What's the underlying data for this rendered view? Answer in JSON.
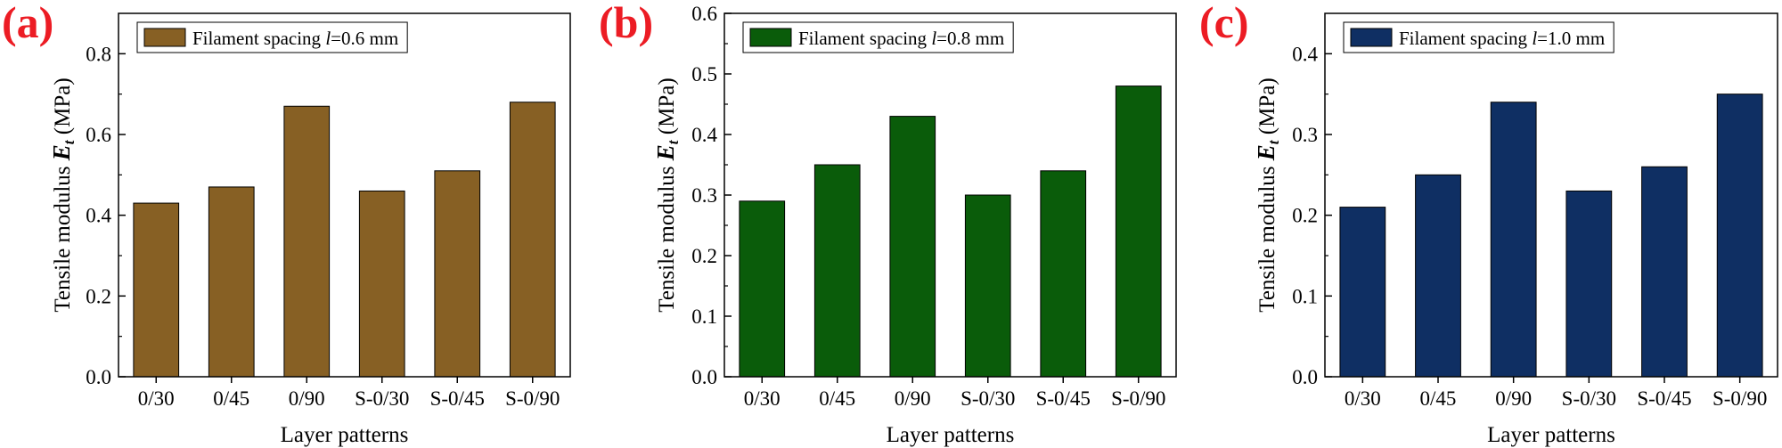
{
  "chart_data": [
    {
      "type": "bar",
      "panel_label": "(a)",
      "categories": [
        "0/30",
        "0/45",
        "0/90",
        "S-0/30",
        "S-0/45",
        "S-0/90"
      ],
      "series": [
        {
          "name": "Filament spacing l=0.6 mm",
          "legend_prefix": "Filament spacing ",
          "legend_var": "l",
          "legend_suffix": "=0.6 mm",
          "values": [
            0.43,
            0.47,
            0.67,
            0.46,
            0.51,
            0.68
          ]
        }
      ],
      "xlabel": "Layer patterns",
      "ylabel_prefix": "Tensile modulus ",
      "ylabel_var": "E",
      "ylabel_sub": "t",
      "ylabel_unit": " (MPa)",
      "ylim": [
        0,
        0.9
      ],
      "yticks": [
        0.0,
        0.2,
        0.4,
        0.6,
        0.8
      ],
      "ytick_labels": [
        "0.0",
        "0.2",
        "0.4",
        "0.6",
        "0.8"
      ],
      "color": "#876024",
      "legend_position": "top-left",
      "grid": false
    },
    {
      "type": "bar",
      "panel_label": "(b)",
      "categories": [
        "0/30",
        "0/45",
        "0/90",
        "S-0/30",
        "S-0/45",
        "S-0/90"
      ],
      "series": [
        {
          "name": "Filament spacing l=0.8 mm",
          "legend_prefix": "Filament spacing ",
          "legend_var": "l",
          "legend_suffix": "=0.8 mm",
          "values": [
            0.29,
            0.35,
            0.43,
            0.3,
            0.34,
            0.48
          ]
        }
      ],
      "xlabel": "Layer patterns",
      "ylabel_prefix": "Tensile modulus ",
      "ylabel_var": "E",
      "ylabel_sub": "t",
      "ylabel_unit": " (MPa)",
      "ylim": [
        0,
        0.6
      ],
      "yticks": [
        0.0,
        0.1,
        0.2,
        0.3,
        0.4,
        0.5,
        0.6
      ],
      "ytick_labels": [
        "0.0",
        "0.1",
        "0.2",
        "0.3",
        "0.4",
        "0.5",
        "0.6"
      ],
      "color": "#0a5c0a",
      "legend_position": "top-left",
      "grid": false
    },
    {
      "type": "bar",
      "panel_label": "(c)",
      "categories": [
        "0/30",
        "0/45",
        "0/90",
        "S-0/30",
        "S-0/45",
        "S-0/90"
      ],
      "series": [
        {
          "name": "Filament spacing l=1.0 mm",
          "legend_prefix": "Filament spacing ",
          "legend_var": "l",
          "legend_suffix": "=1.0 mm",
          "values": [
            0.21,
            0.25,
            0.34,
            0.23,
            0.26,
            0.35
          ]
        }
      ],
      "xlabel": "Layer patterns",
      "ylabel_prefix": "Tensile modulus ",
      "ylabel_var": "E",
      "ylabel_sub": "t",
      "ylabel_unit": " (MPa)",
      "ylim": [
        0,
        0.45
      ],
      "yticks": [
        0.0,
        0.1,
        0.2,
        0.3,
        0.4
      ],
      "ytick_labels": [
        "0.0",
        "0.1",
        "0.2",
        "0.3",
        "0.4"
      ],
      "color": "#0f2f63",
      "legend_position": "top-left",
      "grid": false
    }
  ]
}
